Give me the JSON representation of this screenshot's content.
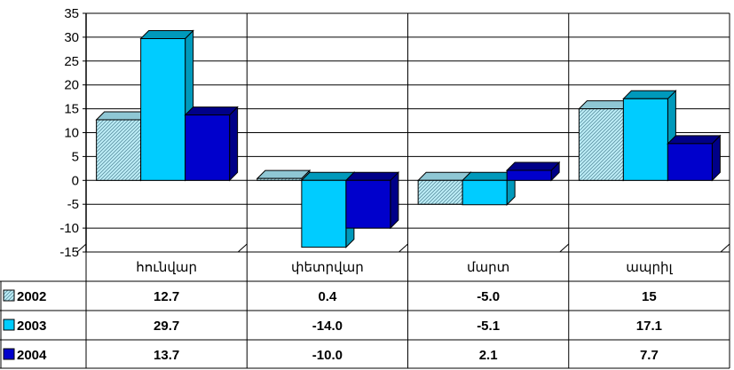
{
  "chart_data": {
    "type": "bar",
    "categories": [
      "հունվար",
      "փետրվար",
      "մարտ",
      "ապրիլ"
    ],
    "series": [
      {
        "name": "2002",
        "values": [
          12.7,
          0.4,
          -5.0,
          15
        ],
        "labels": [
          "12.7",
          "0.4",
          "-5.0",
          "15"
        ]
      },
      {
        "name": "2003",
        "values": [
          29.7,
          -14.0,
          -5.1,
          17.1
        ],
        "labels": [
          "29.7",
          "-14.0",
          "-5.1",
          "17.1"
        ]
      },
      {
        "name": "2004",
        "values": [
          13.7,
          -10.0,
          2.1,
          7.7
        ],
        "labels": [
          "13.7",
          "-10.0",
          "2.1",
          "7.7"
        ]
      }
    ],
    "y_ticks": [
      "35",
      "30",
      "25",
      "20",
      "15",
      "10",
      "5",
      "0",
      "-5",
      "-10",
      "-15"
    ],
    "ylim": [
      -15,
      35
    ],
    "grid": true,
    "legend": "data-table",
    "title": "",
    "xlabel": "",
    "ylabel": "",
    "colors": {
      "2002": "#bfeff8",
      "2003": "#00ccff",
      "2004": "#0000cc",
      "2002_hatch": "#5a8fa0"
    }
  }
}
